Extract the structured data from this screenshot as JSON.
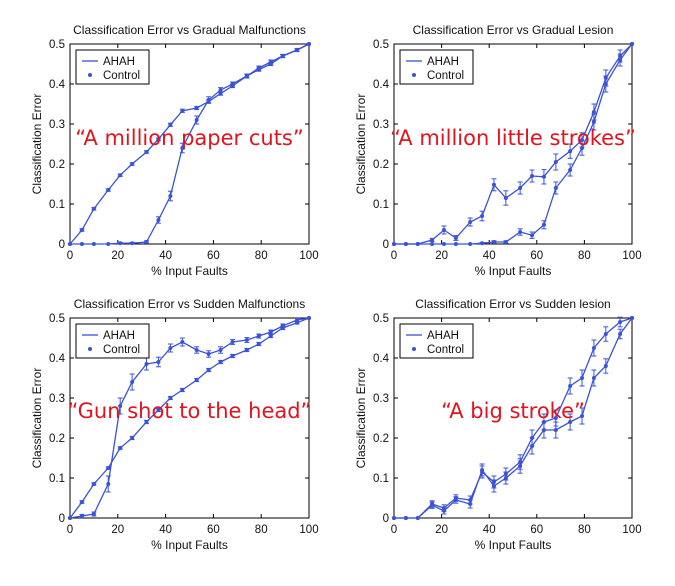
{
  "colors": {
    "series": "#3a53d8",
    "axis": "#000000",
    "annotation": "#e0141e"
  },
  "chart_data": [
    {
      "type": "line",
      "title": "Classification Error vs Gradual Malfunctions",
      "xlabel": "% Input Faults",
      "ylabel": "Classification Error",
      "xlim": [
        0,
        100
      ],
      "ylim": [
        0,
        0.5
      ],
      "xticks": [
        0,
        20,
        40,
        60,
        80,
        100
      ],
      "yticks": [
        0,
        0.1,
        0.2,
        0.3,
        0.4,
        0.5
      ],
      "legend": {
        "position": "top-left",
        "entries": [
          "AHAH",
          "Control"
        ]
      },
      "annotation": "“A million paper cuts”",
      "series": [
        {
          "name": "AHAH",
          "x": [
            0,
            5,
            10,
            16,
            21,
            26,
            32,
            37,
            42,
            47,
            53,
            58,
            63,
            68,
            74,
            79,
            84,
            89,
            95,
            100
          ],
          "y": [
            0,
            0.035,
            0.088,
            0.135,
            0.172,
            0.2,
            0.23,
            0.262,
            0.298,
            0.333,
            0.34,
            0.356,
            0.376,
            0.395,
            0.42,
            0.436,
            0.45,
            0.47,
            0.485,
            0.5
          ],
          "err": [
            0,
            0.003,
            0.003,
            0.003,
            0.003,
            0.003,
            0.003,
            0.003,
            0.004,
            0.004,
            0.004,
            0.004,
            0.004,
            0.004,
            0.004,
            0.004,
            0.004,
            0.004,
            0.003,
            0
          ]
        },
        {
          "name": "Control",
          "x": [
            0,
            5,
            10,
            16,
            21,
            26,
            32,
            37,
            42,
            47,
            53,
            58,
            63,
            68,
            74,
            79,
            84,
            89,
            95,
            100
          ],
          "y": [
            0,
            0,
            0,
            0,
            0.002,
            0.002,
            0.005,
            0.06,
            0.12,
            0.24,
            0.31,
            0.36,
            0.385,
            0.4,
            0.42,
            0.44,
            0.455,
            0.47,
            0.485,
            0.5
          ],
          "err": [
            0,
            0,
            0,
            0,
            0.002,
            0.002,
            0.003,
            0.008,
            0.012,
            0.012,
            0.01,
            0.008,
            0.006,
            0.005,
            0.005,
            0.005,
            0.005,
            0.004,
            0.004,
            0
          ]
        }
      ]
    },
    {
      "type": "line",
      "title": "Classification Error vs Gradual Lesion",
      "xlabel": "% Input Faults",
      "ylabel": "Classification Error",
      "xlim": [
        0,
        100
      ],
      "ylim": [
        0,
        0.5
      ],
      "xticks": [
        0,
        20,
        40,
        60,
        80,
        100
      ],
      "yticks": [
        0,
        0.1,
        0.2,
        0.3,
        0.4,
        0.5
      ],
      "legend": {
        "position": "top-left",
        "entries": [
          "AHAH",
          "Control"
        ]
      },
      "annotation": "“A million little strokes”",
      "series": [
        {
          "name": "AHAH",
          "x": [
            0,
            5,
            10,
            16,
            21,
            26,
            32,
            37,
            42,
            47,
            53,
            58,
            63,
            68,
            74,
            79,
            84,
            89,
            95,
            100
          ],
          "y": [
            0,
            0,
            0,
            0.01,
            0.035,
            0.015,
            0.055,
            0.07,
            0.148,
            0.115,
            0.14,
            0.17,
            0.168,
            0.205,
            0.232,
            0.26,
            0.33,
            0.415,
            0.47,
            0.5
          ],
          "err": [
            0,
            0,
            0,
            0.004,
            0.01,
            0.006,
            0.01,
            0.012,
            0.015,
            0.018,
            0.015,
            0.015,
            0.018,
            0.02,
            0.018,
            0.018,
            0.02,
            0.02,
            0.015,
            0
          ]
        },
        {
          "name": "Control",
          "x": [
            0,
            5,
            10,
            16,
            21,
            26,
            32,
            37,
            42,
            47,
            53,
            58,
            63,
            68,
            74,
            79,
            84,
            89,
            95,
            100
          ],
          "y": [
            0,
            0,
            0,
            0,
            0,
            0,
            0,
            0.002,
            0.005,
            0.005,
            0.03,
            0.022,
            0.048,
            0.14,
            0.185,
            0.24,
            0.305,
            0.4,
            0.46,
            0.5
          ],
          "err": [
            0,
            0,
            0,
            0,
            0,
            0,
            0,
            0.002,
            0.003,
            0.003,
            0.008,
            0.008,
            0.01,
            0.015,
            0.015,
            0.018,
            0.02,
            0.02,
            0.015,
            0
          ]
        }
      ]
    },
    {
      "type": "line",
      "title": "Classification Error vs Sudden Malfunctions",
      "xlabel": "% Input Faults",
      "ylabel": "Classification Error",
      "xlim": [
        0,
        100
      ],
      "ylim": [
        0,
        0.5
      ],
      "xticks": [
        0,
        20,
        40,
        60,
        80,
        100
      ],
      "yticks": [
        0,
        0.1,
        0.2,
        0.3,
        0.4,
        0.5
      ],
      "legend": {
        "position": "top-left",
        "entries": [
          "AHAH",
          "Control"
        ]
      },
      "annotation": "“Gun shot to the head”",
      "series": [
        {
          "name": "AHAH",
          "x": [
            0,
            5,
            10,
            16,
            21,
            26,
            32,
            37,
            42,
            47,
            53,
            58,
            63,
            68,
            74,
            79,
            84,
            89,
            95,
            100
          ],
          "y": [
            0,
            0.04,
            0.085,
            0.125,
            0.175,
            0.2,
            0.24,
            0.27,
            0.3,
            0.32,
            0.345,
            0.37,
            0.39,
            0.405,
            0.42,
            0.435,
            0.455,
            0.475,
            0.488,
            0.5
          ],
          "err": [
            0,
            0.003,
            0.003,
            0.003,
            0.003,
            0.004,
            0.004,
            0.004,
            0.004,
            0.004,
            0.004,
            0.004,
            0.004,
            0.004,
            0.004,
            0.004,
            0.004,
            0.004,
            0.003,
            0
          ]
        },
        {
          "name": "Control",
          "x": [
            0,
            5,
            10,
            16,
            21,
            26,
            32,
            37,
            42,
            47,
            53,
            58,
            63,
            68,
            74,
            79,
            84,
            89,
            95,
            100
          ],
          "y": [
            0,
            0.005,
            0.01,
            0.085,
            0.28,
            0.34,
            0.385,
            0.39,
            0.425,
            0.44,
            0.42,
            0.41,
            0.42,
            0.44,
            0.445,
            0.455,
            0.465,
            0.48,
            0.495,
            0.5
          ],
          "err": [
            0,
            0.004,
            0.005,
            0.02,
            0.02,
            0.02,
            0.015,
            0.012,
            0.01,
            0.01,
            0.008,
            0.008,
            0.008,
            0.006,
            0.006,
            0.005,
            0.005,
            0.005,
            0.004,
            0
          ]
        }
      ]
    },
    {
      "type": "line",
      "title": "Classification Error vs Sudden lesion",
      "xlabel": "% Input Faults",
      "ylabel": "Classification Error",
      "xlim": [
        0,
        100
      ],
      "ylim": [
        0,
        0.5
      ],
      "xticks": [
        0,
        20,
        40,
        60,
        80,
        100
      ],
      "yticks": [
        0,
        0.1,
        0.2,
        0.3,
        0.4,
        0.5
      ],
      "legend": {
        "position": "top-left",
        "entries": [
          "AHAH",
          "Control"
        ]
      },
      "annotation": "“A big stroke”",
      "series": [
        {
          "name": "AHAH",
          "x": [
            0,
            5,
            10,
            16,
            21,
            26,
            32,
            37,
            42,
            47,
            53,
            58,
            63,
            68,
            74,
            79,
            84,
            89,
            95,
            100
          ],
          "y": [
            0,
            0,
            0,
            0.035,
            0.025,
            0.05,
            0.045,
            0.115,
            0.09,
            0.11,
            0.14,
            0.2,
            0.24,
            0.25,
            0.33,
            0.35,
            0.425,
            0.46,
            0.49,
            0.5
          ],
          "err": [
            0,
            0,
            0,
            0.008,
            0.008,
            0.008,
            0.01,
            0.015,
            0.015,
            0.015,
            0.018,
            0.02,
            0.02,
            0.02,
            0.02,
            0.02,
            0.02,
            0.018,
            0.012,
            0
          ]
        },
        {
          "name": "Control",
          "x": [
            0,
            5,
            10,
            16,
            21,
            26,
            32,
            37,
            42,
            47,
            53,
            58,
            63,
            68,
            74,
            79,
            84,
            89,
            95,
            100
          ],
          "y": [
            0,
            0,
            0,
            0.032,
            0.018,
            0.045,
            0.035,
            0.12,
            0.08,
            0.1,
            0.13,
            0.18,
            0.22,
            0.22,
            0.24,
            0.255,
            0.35,
            0.38,
            0.46,
            0.5
          ],
          "err": [
            0,
            0,
            0,
            0.008,
            0.008,
            0.008,
            0.01,
            0.015,
            0.015,
            0.015,
            0.018,
            0.02,
            0.02,
            0.02,
            0.02,
            0.02,
            0.02,
            0.018,
            0.012,
            0
          ]
        }
      ]
    }
  ]
}
